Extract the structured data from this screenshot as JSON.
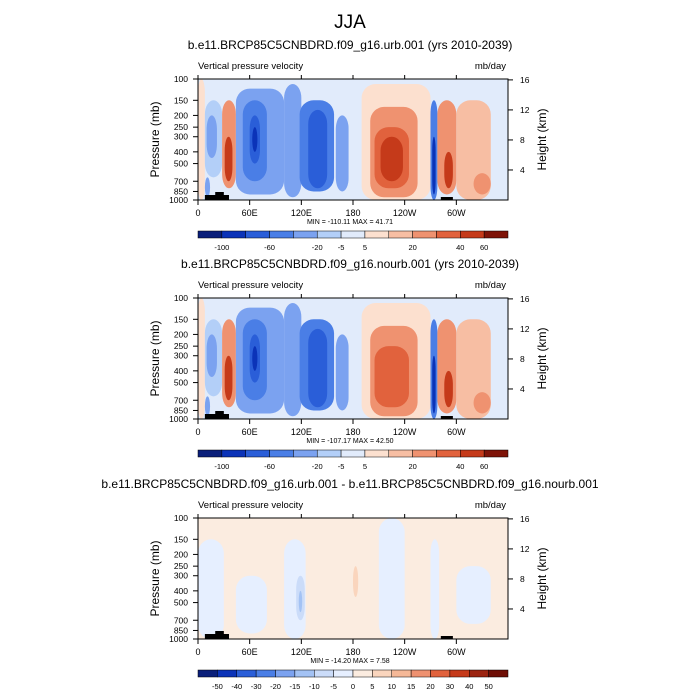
{
  "figure": {
    "title": "JJA"
  },
  "colors": {
    "scale12": [
      "#0a1f7a",
      "#0b33b8",
      "#2a5ed8",
      "#4a7ee6",
      "#7ba2f0",
      "#b3cff8",
      "#e1ebfb",
      "#fce0cf",
      "#f7bea3",
      "#ef9270",
      "#e1623d",
      "#c53a1a",
      "#7e1308"
    ],
    "diffscale": [
      "#0a1f7a",
      "#0b33b8",
      "#2a5ed8",
      "#4a7ee6",
      "#7ba2f0",
      "#a3c2f4",
      "#cbdcf9",
      "#e6efff",
      "#fbece0",
      "#fad5bd",
      "#f5b897",
      "#ee9170",
      "#e1623d",
      "#c53a1a",
      "#9c2410",
      "#6e0e05"
    ]
  },
  "chart_data": [
    {
      "type": "heatmap",
      "title": "b.e11.BRCP85C5CNBDRD.f09_g16.urb.001 (yrs 2010-2039)",
      "subtitle_left": "Vertical pressure velocity",
      "subtitle_right": "mb/day",
      "ylabel": "Pressure (mb)",
      "ylabel_right": "Height (km)",
      "xticks": [
        "0",
        "60E",
        "120E",
        "180",
        "120W",
        "60W"
      ],
      "yticks": [
        "100",
        "150",
        "200",
        "250",
        "300",
        "400",
        "500",
        "700",
        "850",
        "1000"
      ],
      "yticks_right": [
        "16",
        "12",
        "8",
        "4"
      ],
      "stats": "MIN = -110.11  MAX =  41.71",
      "colorbar_labels": [
        "-100",
        "-60",
        "-20",
        "-5",
        "5",
        "20",
        "40",
        "60"
      ],
      "colorbar_label_index": [
        1,
        3,
        5,
        6,
        7,
        9,
        11,
        12
      ],
      "field": [
        {
          "lon": [
            0,
            8
          ],
          "p": [
            100,
            1000
          ],
          "level": 7
        },
        {
          "lon": [
            8,
            28
          ],
          "p": [
            150,
            650
          ],
          "level": 5
        },
        {
          "lon": [
            10,
            22
          ],
          "p": [
            200,
            450
          ],
          "level": 4
        },
        {
          "lon": [
            8,
            14
          ],
          "p": [
            650,
            950
          ],
          "level": 4
        },
        {
          "lon": [
            28,
            44
          ],
          "p": [
            150,
            800
          ],
          "level": 9
        },
        {
          "lon": [
            31,
            40
          ],
          "p": [
            300,
            700
          ],
          "level": 11
        },
        {
          "lon": [
            44,
            100
          ],
          "p": [
            120,
            900
          ],
          "level": 4
        },
        {
          "lon": [
            52,
            80
          ],
          "p": [
            150,
            700
          ],
          "level": 3
        },
        {
          "lon": [
            60,
            72
          ],
          "p": [
            200,
            500
          ],
          "level": 2
        },
        {
          "lon": [
            63,
            69
          ],
          "p": [
            250,
            400
          ],
          "level": 1
        },
        {
          "lon": [
            100,
            120
          ],
          "p": [
            110,
            950
          ],
          "level": 4
        },
        {
          "lon": [
            118,
            158
          ],
          "p": [
            150,
            850
          ],
          "level": 3
        },
        {
          "lon": [
            128,
            150
          ],
          "p": [
            180,
            800
          ],
          "level": 2
        },
        {
          "lon": [
            160,
            175
          ],
          "p": [
            200,
            850
          ],
          "level": 4
        },
        {
          "lon": [
            175,
            200
          ],
          "p": [
            150,
            900
          ],
          "level": 6
        },
        {
          "lon": [
            190,
            270
          ],
          "p": [
            110,
            1000
          ],
          "level": 7
        },
        {
          "lon": [
            200,
            255
          ],
          "p": [
            170,
            950
          ],
          "level": 9
        },
        {
          "lon": [
            205,
            245
          ],
          "p": [
            250,
            800
          ],
          "level": 10
        },
        {
          "lon": [
            212,
            238
          ],
          "p": [
            300,
            700
          ],
          "level": 11
        },
        {
          "lon": [
            270,
            278
          ],
          "p": [
            150,
            1000
          ],
          "level": 3
        },
        {
          "lon": [
            272,
            276
          ],
          "p": [
            300,
            900
          ],
          "level": 1
        },
        {
          "lon": [
            278,
            300
          ],
          "p": [
            150,
            900
          ],
          "level": 9
        },
        {
          "lon": [
            286,
            296
          ],
          "p": [
            400,
            800
          ],
          "level": 11
        },
        {
          "lon": [
            300,
            340
          ],
          "p": [
            150,
            1000
          ],
          "level": 8
        },
        {
          "lon": [
            320,
            340
          ],
          "p": [
            600,
            900
          ],
          "level": 9
        }
      ]
    },
    {
      "type": "heatmap",
      "title": "b.e11.BRCP85C5CNBDRD.f09_g16.nourb.001 (yrs 2010-2039)",
      "subtitle_left": "Vertical pressure velocity",
      "subtitle_right": "mb/day",
      "ylabel": "Pressure (mb)",
      "ylabel_right": "Height (km)",
      "xticks": [
        "0",
        "60E",
        "120E",
        "180",
        "120W",
        "60W"
      ],
      "yticks": [
        "100",
        "150",
        "200",
        "250",
        "300",
        "400",
        "500",
        "700",
        "850",
        "1000"
      ],
      "yticks_right": [
        "16",
        "12",
        "8",
        "4"
      ],
      "stats": "MIN = -107.17  MAX =  42.50",
      "colorbar_labels": [
        "-100",
        "-60",
        "-20",
        "-5",
        "5",
        "20",
        "40",
        "60"
      ],
      "colorbar_label_index": [
        1,
        3,
        5,
        6,
        7,
        9,
        11,
        12
      ],
      "field": [
        {
          "lon": [
            0,
            8
          ],
          "p": [
            100,
            1000
          ],
          "level": 7
        },
        {
          "lon": [
            8,
            28
          ],
          "p": [
            150,
            650
          ],
          "level": 5
        },
        {
          "lon": [
            10,
            22
          ],
          "p": [
            200,
            450
          ],
          "level": 4
        },
        {
          "lon": [
            8,
            14
          ],
          "p": [
            650,
            950
          ],
          "level": 4
        },
        {
          "lon": [
            28,
            44
          ],
          "p": [
            150,
            800
          ],
          "level": 9
        },
        {
          "lon": [
            31,
            40
          ],
          "p": [
            300,
            700
          ],
          "level": 11
        },
        {
          "lon": [
            44,
            100
          ],
          "p": [
            120,
            900
          ],
          "level": 4
        },
        {
          "lon": [
            52,
            80
          ],
          "p": [
            150,
            700
          ],
          "level": 3
        },
        {
          "lon": [
            60,
            72
          ],
          "p": [
            200,
            500
          ],
          "level": 2
        },
        {
          "lon": [
            63,
            69
          ],
          "p": [
            250,
            400
          ],
          "level": 1
        },
        {
          "lon": [
            100,
            120
          ],
          "p": [
            110,
            950
          ],
          "level": 4
        },
        {
          "lon": [
            118,
            158
          ],
          "p": [
            150,
            850
          ],
          "level": 3
        },
        {
          "lon": [
            128,
            150
          ],
          "p": [
            180,
            800
          ],
          "level": 2
        },
        {
          "lon": [
            160,
            175
          ],
          "p": [
            200,
            850
          ],
          "level": 4
        },
        {
          "lon": [
            175,
            200
          ],
          "p": [
            150,
            900
          ],
          "level": 6
        },
        {
          "lon": [
            190,
            270
          ],
          "p": [
            110,
            1000
          ],
          "level": 7
        },
        {
          "lon": [
            200,
            255
          ],
          "p": [
            170,
            950
          ],
          "level": 9
        },
        {
          "lon": [
            205,
            245
          ],
          "p": [
            250,
            800
          ],
          "level": 10
        },
        {
          "lon": [
            270,
            278
          ],
          "p": [
            150,
            1000
          ],
          "level": 3
        },
        {
          "lon": [
            272,
            276
          ],
          "p": [
            300,
            900
          ],
          "level": 1
        },
        {
          "lon": [
            278,
            300
          ],
          "p": [
            150,
            900
          ],
          "level": 9
        },
        {
          "lon": [
            286,
            296
          ],
          "p": [
            400,
            800
          ],
          "level": 11
        },
        {
          "lon": [
            300,
            340
          ],
          "p": [
            150,
            1000
          ],
          "level": 8
        },
        {
          "lon": [
            320,
            340
          ],
          "p": [
            600,
            900
          ],
          "level": 9
        }
      ]
    },
    {
      "type": "heatmap",
      "title": "b.e11.BRCP85C5CNBDRD.f09_g16.urb.001 - b.e11.BRCP85C5CNBDRD.f09_g16.nourb.001",
      "subtitle_left": "Vertical pressure velocity",
      "subtitle_right": "mb/day",
      "ylabel": "Pressure (mb)",
      "ylabel_right": "Height (km)",
      "xticks": [
        "0",
        "60E",
        "120E",
        "180",
        "120W",
        "60W"
      ],
      "yticks": [
        "100",
        "150",
        "200",
        "250",
        "300",
        "400",
        "500",
        "700",
        "850",
        "1000"
      ],
      "yticks_right": [
        "16",
        "12",
        "8",
        "4"
      ],
      "stats": "MIN = -14.20  MAX =   7.58",
      "colorbar_labels": [
        "-50",
        "-40",
        "-30",
        "-20",
        "-15",
        "-10",
        "-5",
        "0",
        "5",
        "10",
        "15",
        "20",
        "30",
        "40",
        "50"
      ],
      "colorbar_label_index": [
        1,
        2,
        3,
        4,
        5,
        6,
        7,
        8,
        9,
        10,
        11,
        12,
        13,
        14,
        15
      ],
      "field": [
        {
          "lon": [
            0,
            360
          ],
          "p": [
            100,
            1000
          ],
          "level": 8
        },
        {
          "lon": [
            0,
            30
          ],
          "p": [
            150,
            1000
          ],
          "level": 7
        },
        {
          "lon": [
            44,
            80
          ],
          "p": [
            300,
            900
          ],
          "level": 7
        },
        {
          "lon": [
            100,
            125
          ],
          "p": [
            150,
            1000
          ],
          "level": 7
        },
        {
          "lon": [
            114,
            124
          ],
          "p": [
            300,
            700
          ],
          "level": 6
        },
        {
          "lon": [
            117,
            121
          ],
          "p": [
            400,
            600
          ],
          "level": 5
        },
        {
          "lon": [
            180,
            186
          ],
          "p": [
            250,
            450
          ],
          "level": 9
        },
        {
          "lon": [
            210,
            240
          ],
          "p": [
            100,
            1000
          ],
          "level": 7
        },
        {
          "lon": [
            270,
            280
          ],
          "p": [
            150,
            1000
          ],
          "level": 7
        },
        {
          "lon": [
            300,
            340
          ],
          "p": [
            250,
            750
          ],
          "level": 7
        }
      ]
    }
  ]
}
